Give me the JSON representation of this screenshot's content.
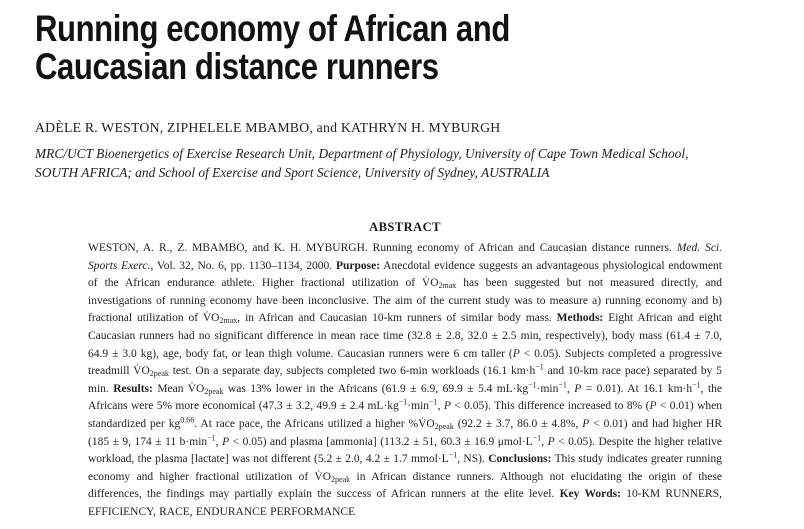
{
  "colors": {
    "background": "#ffffff",
    "text": "#1f1f1f"
  },
  "title": {
    "line1": "Running economy of African and",
    "line2": "Caucasian distance runners"
  },
  "authors": "ADÈLE R. WESTON, ZIPHELELE MBAMBO, and KATHRYN H. MYBURGH",
  "affiliation": {
    "line1": "MRC/UCT Bioenergetics of Exercise Research Unit, Department of Physiology, University of Cape Town Medical School,",
    "line2": "SOUTH AFRICA; and School of Exercise and Sport Science, University of Sydney, AUSTRALIA"
  },
  "abstract": {
    "heading": "ABSTRACT",
    "segments": [
      {
        "t": "WESTON, A. R., Z. MBAMBO, and K. H. MYBURGH. Running economy of African and Caucasian distance runners. "
      },
      {
        "t": "Med. Sci. Sports Exerc.",
        "i": true
      },
      {
        "t": ", Vol. 32, No. 6, pp. 1130–1134, 2000. "
      },
      {
        "t": "Purpose:",
        "b": true
      },
      {
        "t": " Anecdotal evidence suggests an advantageous physiological endowment of the African endurance athlete. Higher fractional utilization of V̇O"
      },
      {
        "t": "2max",
        "sub": true
      },
      {
        "t": " has been suggested but not measured directly, and investigations of running economy have been inconclusive. The aim of the current study was to measure a) running economy and b) fractional utilization of V̇O"
      },
      {
        "t": "2max",
        "sub": true
      },
      {
        "t": ", in African and Caucasian 10-km runners of similar body mass. "
      },
      {
        "t": "Methods:",
        "b": true
      },
      {
        "t": " Eight African and eight Caucasian runners had no significant difference in mean race time (32.8 ± 2.8, 32.0 ± 2.5 min, respectively), body mass (61.4 ± 7.0, 64.9 ± 3.0 kg), age, body fat, or lean thigh volume. Caucasian runners were 6 cm taller ("
      },
      {
        "t": "P",
        "i": true
      },
      {
        "t": " < 0.05). Subjects completed a progressive treadmill V̇O"
      },
      {
        "t": "2peak",
        "sub": true
      },
      {
        "t": " test. On a separate day, subjects completed two 6-min workloads (16.1 km·h"
      },
      {
        "t": "−1",
        "sup": true
      },
      {
        "t": " and 10-km race pace) separated by 5 min. "
      },
      {
        "t": "Results:",
        "b": true
      },
      {
        "t": " Mean V̇O"
      },
      {
        "t": "2peak",
        "sub": true
      },
      {
        "t": " was 13% lower in the Africans (61.9 ± 6.9, 69.9 ± 5.4 mL·kg"
      },
      {
        "t": "−1",
        "sup": true
      },
      {
        "t": "·min"
      },
      {
        "t": "−1",
        "sup": true
      },
      {
        "t": ", "
      },
      {
        "t": "P",
        "i": true
      },
      {
        "t": " = 0.01). At 16.1 km·h"
      },
      {
        "t": "−1",
        "sup": true
      },
      {
        "t": ", the Africans were 5% more economical (47.3 ± 3.2, 49.9 ± 2.4 mL·kg"
      },
      {
        "t": "−1",
        "sup": true
      },
      {
        "t": "·min"
      },
      {
        "t": "−1",
        "sup": true
      },
      {
        "t": ", "
      },
      {
        "t": "P",
        "i": true
      },
      {
        "t": " < 0.05). This difference increased to 8% ("
      },
      {
        "t": "P",
        "i": true
      },
      {
        "t": " < 0.01) when standardized per kg"
      },
      {
        "t": "0.66",
        "sup": true
      },
      {
        "t": ". At race pace, the Africans utilized a higher %V̇O"
      },
      {
        "t": "2peak",
        "sub": true
      },
      {
        "t": " (92.2 ± 3.7, 86.0 ± 4.8%, "
      },
      {
        "t": "P",
        "i": true
      },
      {
        "t": " < 0.01) and had higher HR (185 ± 9, 174 ± 11 b·min"
      },
      {
        "t": "−1",
        "sup": true
      },
      {
        "t": ", "
      },
      {
        "t": "P",
        "i": true
      },
      {
        "t": " < 0.05) and plasma [ammonia] (113.2 ± 51, 60.3 ± 16.9 μmol·L"
      },
      {
        "t": "−1",
        "sup": true
      },
      {
        "t": ", "
      },
      {
        "t": "P",
        "i": true
      },
      {
        "t": " < 0.05). Despite the higher relative workload, the plasma [lactate] was not different (5.2 ± 2.0, 4.2 ± 1.7 mmol·L"
      },
      {
        "t": "−1",
        "sup": true
      },
      {
        "t": ", NS). "
      },
      {
        "t": "Conclusions:",
        "b": true
      },
      {
        "t": " This study indicates greater running economy and higher fractional utilization of V̇O"
      },
      {
        "t": "2peak",
        "sub": true
      },
      {
        "t": " in African distance runners. Although not elucidating the origin of these differences, the findings may partially explain the success of African runners at the elite level. "
      },
      {
        "t": "Key Words:",
        "b": true
      },
      {
        "t": " 10-KM RUNNERS, EFFICIENCY, RACE, ENDURANCE PERFORMANCE"
      }
    ]
  }
}
